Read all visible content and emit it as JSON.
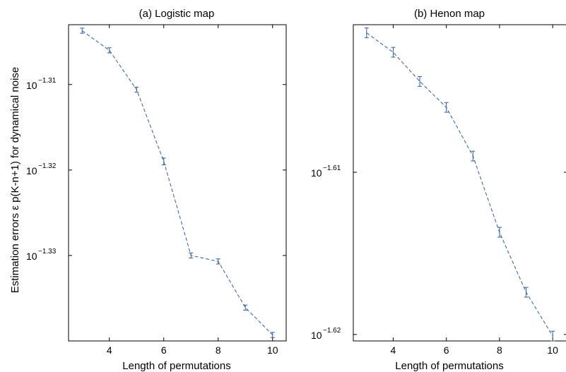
{
  "ylabel": "Estimation errors  ε p(K-n+1) for dynamical noise",
  "chart_data": [
    {
      "type": "line",
      "title": "(a) Logistic map",
      "xlabel": "Length of permutations",
      "ylabel": "",
      "yscale": "log10",
      "xlim": [
        2.5,
        10.5
      ],
      "ylim_log10": [
        -1.34,
        -1.303
      ],
      "xticks": [
        4,
        6,
        8,
        10
      ],
      "yticks": [
        {
          "exp": -1.31,
          "base": "10",
          "sup": "−1.31"
        },
        {
          "exp": -1.32,
          "base": "10",
          "sup": "−1.32"
        },
        {
          "exp": -1.33,
          "base": "10",
          "sup": "−1.33"
        }
      ],
      "x": [
        3,
        4,
        5,
        6,
        7,
        8,
        9,
        10
      ],
      "y_log10": [
        -1.3037,
        -1.306,
        -1.3106,
        -1.319,
        -1.33,
        -1.3307,
        -1.3361,
        -1.3393
      ],
      "err_log10": [
        0.0003,
        0.0003,
        0.0003,
        0.0004,
        0.0003,
        0.0003,
        0.0003,
        0.0003
      ],
      "grid": false,
      "legend": "none"
    },
    {
      "type": "line",
      "title": "(b) Henon map",
      "xlabel": "Length of permutations",
      "ylabel": "",
      "yscale": "log10",
      "xlim": [
        2.5,
        10.5
      ],
      "ylim_log10": [
        -1.6204,
        -1.6009
      ],
      "xticks": [
        4,
        6,
        8,
        10
      ],
      "yticks": [
        {
          "exp": -1.61,
          "base": "10",
          "sup": "−1.61"
        },
        {
          "exp": -1.62,
          "base": "10",
          "sup": "−1.62"
        }
      ],
      "x": [
        3,
        4,
        5,
        6,
        7,
        8,
        9,
        10
      ],
      "y_log10": [
        -1.6014,
        -1.6026,
        -1.6044,
        -1.606,
        -1.609,
        -1.6137,
        -1.6174,
        -1.6201
      ],
      "err_log10": [
        0.0003,
        0.0003,
        0.0003,
        0.0003,
        0.0003,
        0.0003,
        0.0003,
        0.0003
      ],
      "grid": false,
      "legend": "none"
    }
  ]
}
